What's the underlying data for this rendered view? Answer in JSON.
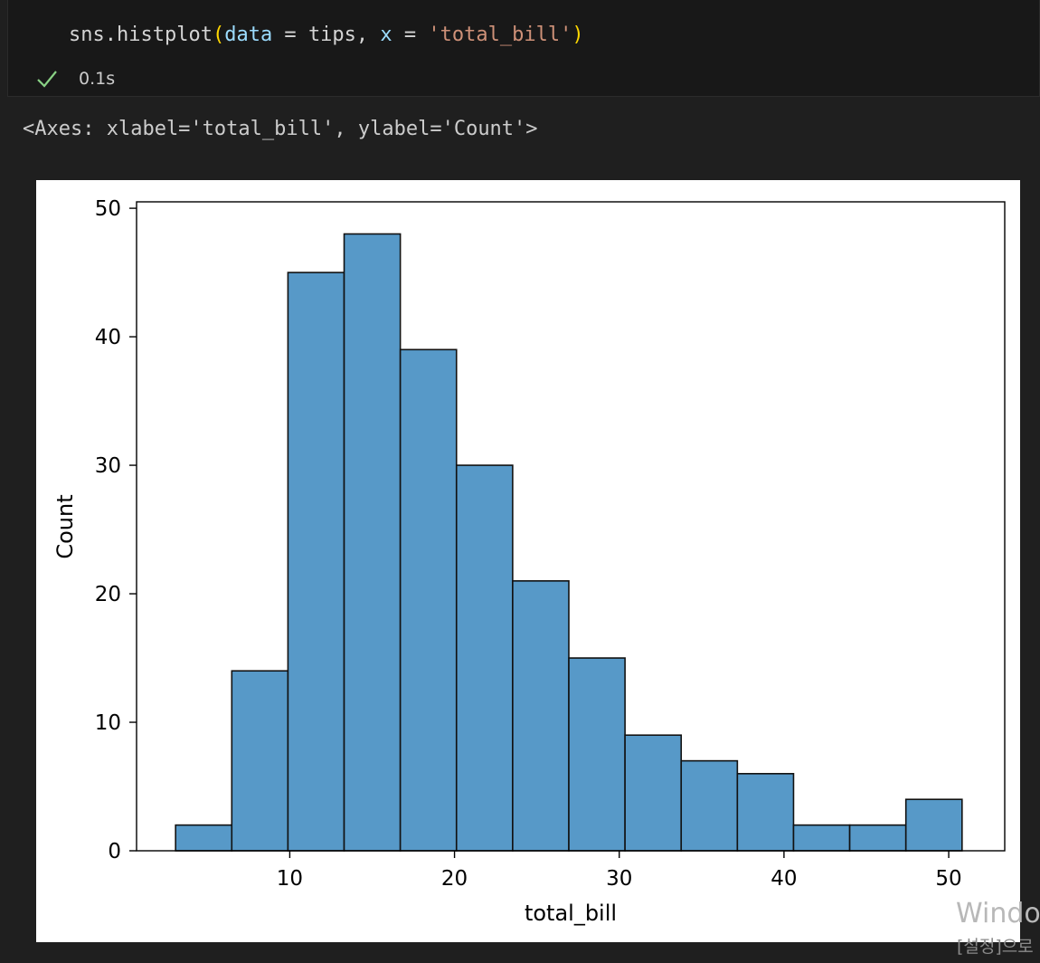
{
  "cell": {
    "code": {
      "fn": "sns.histplot",
      "open_paren": "(",
      "arg1_name": "data",
      "eq1": " = ",
      "arg1_value": "tips",
      "comma": ", ",
      "arg2_name": "x",
      "eq2": " = ",
      "arg2_value": "'total_bill'",
      "close_paren": ")"
    },
    "status_icon": "check-icon",
    "exec_time": "0.1s"
  },
  "output": {
    "repr": "<Axes: xlabel='total_bill', ylabel='Count'>"
  },
  "colors": {
    "bar_fill": "#5799c8",
    "bar_edge": "#111111",
    "check": "#89d185"
  },
  "chart_data": {
    "type": "bar",
    "xlabel": "total_bill",
    "ylabel": "Count",
    "xlim": [
      0.7,
      53.4
    ],
    "ylim": [
      0,
      50.5
    ],
    "xticks": [
      10,
      20,
      30,
      40,
      50
    ],
    "yticks": [
      0,
      10,
      20,
      30,
      40,
      50
    ],
    "bins": [
      {
        "x0": 3.07,
        "x1": 6.48,
        "count": 2
      },
      {
        "x0": 6.48,
        "x1": 9.89,
        "count": 14
      },
      {
        "x0": 9.89,
        "x1": 13.3,
        "count": 45
      },
      {
        "x0": 13.3,
        "x1": 16.71,
        "count": 48
      },
      {
        "x0": 16.71,
        "x1": 20.12,
        "count": 39
      },
      {
        "x0": 20.12,
        "x1": 23.53,
        "count": 30
      },
      {
        "x0": 23.53,
        "x1": 26.94,
        "count": 21
      },
      {
        "x0": 26.94,
        "x1": 30.35,
        "count": 15
      },
      {
        "x0": 30.35,
        "x1": 33.76,
        "count": 9
      },
      {
        "x0": 33.76,
        "x1": 37.17,
        "count": 7
      },
      {
        "x0": 37.17,
        "x1": 40.58,
        "count": 6
      },
      {
        "x0": 40.58,
        "x1": 43.99,
        "count": 2
      },
      {
        "x0": 43.99,
        "x1": 47.4,
        "count": 2
      },
      {
        "x0": 47.4,
        "x1": 50.81,
        "count": 4
      }
    ],
    "grid": false,
    "legend": "none"
  },
  "watermark": {
    "title": "Windo",
    "subtitle": "[설정]으로"
  }
}
